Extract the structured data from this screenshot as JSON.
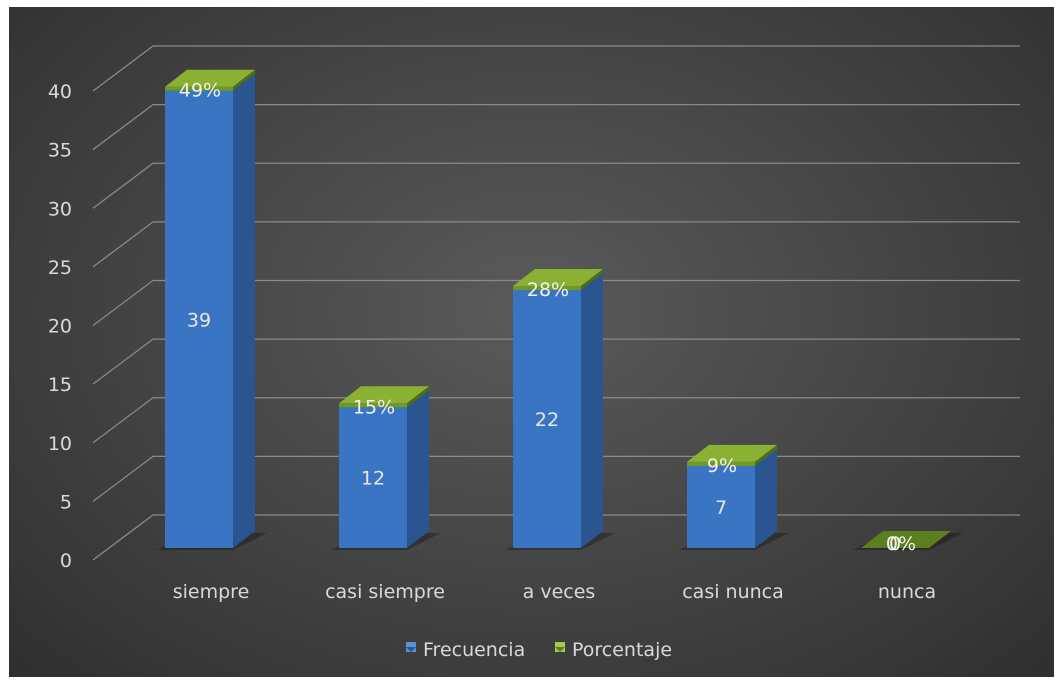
{
  "chart_data": {
    "type": "bar",
    "style": "3d-stacked-column",
    "categories": [
      "siempre",
      "casi siempre",
      "a veces",
      "casi nunca",
      "nunca"
    ],
    "series": [
      {
        "name": "Frecuencia",
        "values": [
          39,
          12,
          22,
          7,
          0
        ],
        "labels": [
          "39",
          "12",
          "22",
          "7",
          ""
        ],
        "color": "#3a75c4"
      },
      {
        "name": "Porcentaje",
        "values": [
          0.49,
          0.15,
          0.28,
          0.09,
          0
        ],
        "labels": [
          "49%",
          "15%",
          "28%",
          "9%",
          "0%"
        ],
        "color": "#6f9a25"
      }
    ],
    "nunca_frecuencia_label": "0",
    "yticks": [
      "0",
      "5",
      "10",
      "15",
      "20",
      "25",
      "30",
      "35",
      "40"
    ],
    "ylim": [
      0,
      40
    ],
    "grid": true,
    "legend": "bottom",
    "background": "#474747"
  }
}
